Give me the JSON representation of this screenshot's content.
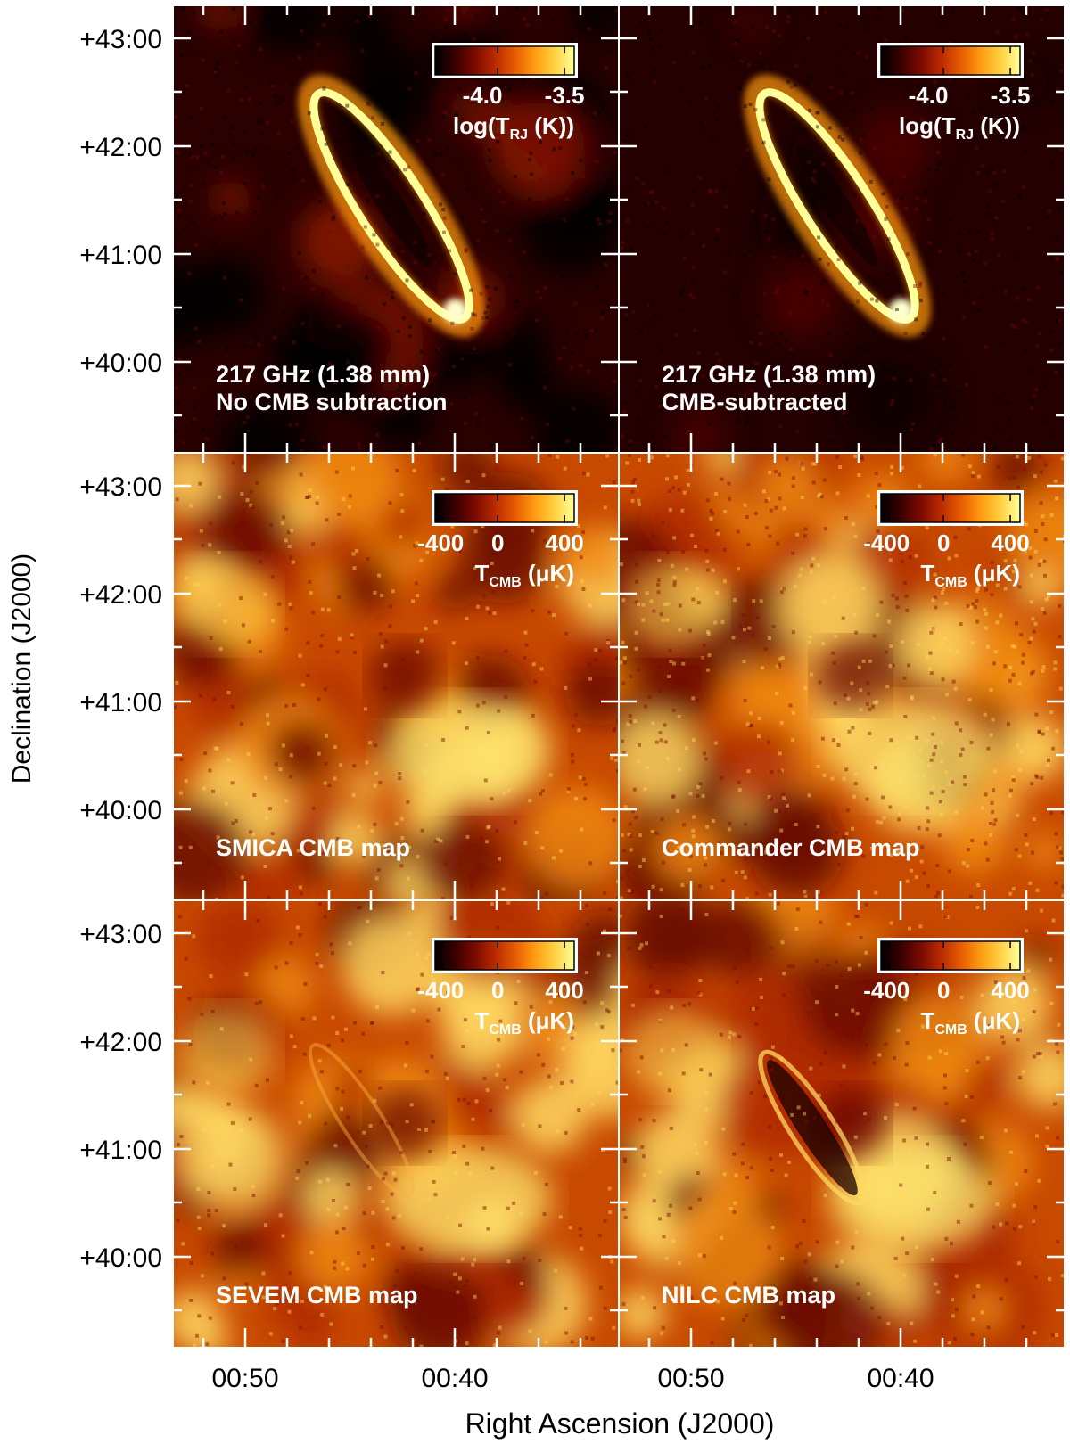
{
  "figure": {
    "ylabel": "Declination (J2000)",
    "xlabel": "Right Ascension (J2000)",
    "dec_ticks": [
      "+43:00",
      "+42:00",
      "+41:00",
      "+40:00"
    ],
    "ra_ticks": [
      "00:50",
      "00:40"
    ],
    "colormap": [
      "#000000",
      "#3a0000",
      "#7a0a00",
      "#b82a00",
      "#e65a00",
      "#ff9a10",
      "#ffd040",
      "#ffff9a"
    ]
  },
  "panels": [
    {
      "id": "p217-raw",
      "label_lines": [
        "217 GHz (1.38 mm)",
        "No CMB subtraction"
      ],
      "colorbar": {
        "ticks": [
          "-4.0",
          "-3.5"
        ],
        "unit_main": "log(T",
        "unit_sub": "RJ",
        "unit_tail": " (K))"
      },
      "style": "galaxy-raw"
    },
    {
      "id": "p217-sub",
      "label_lines": [
        "217 GHz (1.38 mm)",
        "CMB-subtracted"
      ],
      "colorbar": {
        "ticks": [
          "-4.0",
          "-3.5"
        ],
        "unit_main": "log(T",
        "unit_sub": "RJ",
        "unit_tail": " (K))"
      },
      "style": "galaxy-sub"
    },
    {
      "id": "smica",
      "label_lines": [
        "SMICA CMB map"
      ],
      "colorbar": {
        "ticks": [
          "-400",
          "0",
          "400"
        ],
        "unit_main": "T",
        "unit_sub": "CMB",
        "unit_tail": " (μK)"
      },
      "style": "cmb"
    },
    {
      "id": "commander",
      "label_lines": [
        "Commander CMB map"
      ],
      "colorbar": {
        "ticks": [
          "-400",
          "0",
          "400"
        ],
        "unit_main": "T",
        "unit_sub": "CMB",
        "unit_tail": " (μK)"
      },
      "style": "cmb-noisy"
    },
    {
      "id": "sevem",
      "label_lines": [
        "SEVEM CMB map"
      ],
      "colorbar": {
        "ticks": [
          "-400",
          "0",
          "400"
        ],
        "unit_main": "T",
        "unit_sub": "CMB",
        "unit_tail": " (μK)"
      },
      "style": "cmb-faint-galaxy"
    },
    {
      "id": "nilc",
      "label_lines": [
        "NILC CMB map"
      ],
      "colorbar": {
        "ticks": [
          "-400",
          "0",
          "400"
        ],
        "unit_main": "T",
        "unit_sub": "CMB",
        "unit_tail": " (μK)"
      },
      "style": "cmb-galaxy-residual"
    }
  ]
}
